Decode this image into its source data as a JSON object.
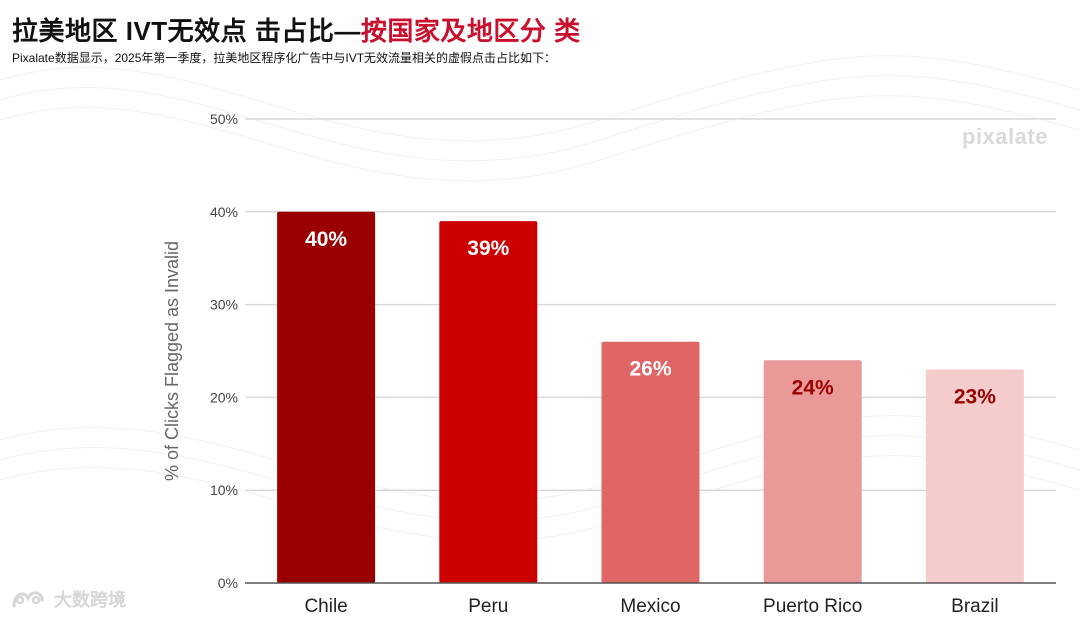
{
  "header": {
    "title_black": "拉美地区 IVT无效点 击占比—",
    "title_red": "按国家及地区分 类",
    "subtitle": "Pixalate数据显示，2025年第一季度，拉美地区程序化广告中与IVT无效流量相关的虚假点击占比如下："
  },
  "brand": {
    "logo_text": "pixalate"
  },
  "watermark": {
    "text": "大数跨境"
  },
  "colors": {
    "title_accent": "#c8102e",
    "gridline": "#d9d9d9",
    "baseline": "#555555"
  },
  "chart_data": {
    "type": "bar",
    "categories": [
      "Chile",
      "Peru",
      "Mexico",
      "Puerto Rico",
      "Brazil"
    ],
    "values": [
      40,
      39,
      26,
      24,
      23
    ],
    "value_labels": [
      "40%",
      "39%",
      "26%",
      "24%",
      "23%"
    ],
    "bar_colors": [
      "#9b0000",
      "#cc0000",
      "#e06666",
      "#ea9999",
      "#f4cccc"
    ],
    "label_colors": [
      "#ffffff",
      "#ffffff",
      "#ffffff",
      "#9b0000",
      "#9b0000"
    ],
    "ylabel": "% of Clicks Flagged as Invalid",
    "ylim": [
      0,
      50
    ],
    "yticks": [
      0,
      10,
      20,
      30,
      40,
      50
    ],
    "ytick_labels": [
      "0%",
      "10%",
      "20%",
      "30%",
      "40%",
      "50%"
    ],
    "grid": true,
    "legend": "none"
  }
}
